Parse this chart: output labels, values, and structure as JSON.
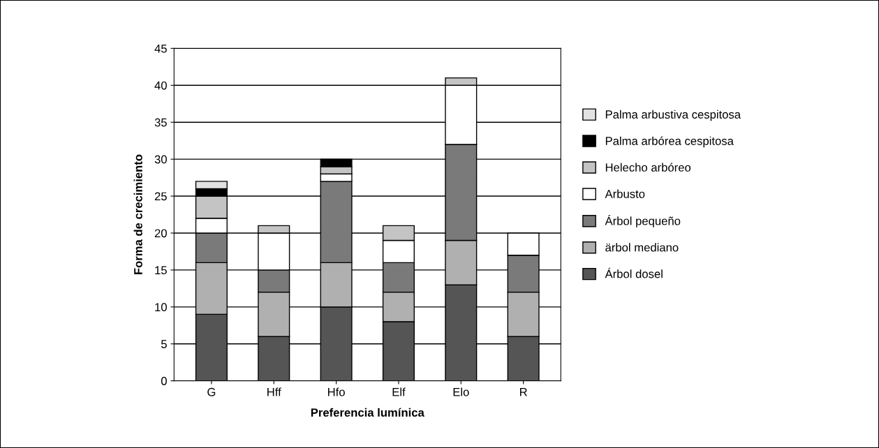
{
  "chart_data": {
    "type": "bar",
    "stacked": true,
    "xlabel": "Preferencia lumínica",
    "ylabel": "Forma de crecimiento",
    "categories": [
      "G",
      "Hff",
      "Hfo",
      "Elf",
      "Elo",
      "R"
    ],
    "series": [
      {
        "name": "Árbol dosel",
        "color": "#555555",
        "values": [
          9,
          6,
          10,
          8,
          13,
          6
        ]
      },
      {
        "name": "ärbol mediano",
        "color": "#b0b0b0",
        "values": [
          7,
          6,
          6,
          4,
          6,
          6
        ]
      },
      {
        "name": "Árbol pequeño",
        "color": "#7a7a7a",
        "values": [
          4,
          3,
          11,
          4,
          13,
          5
        ]
      },
      {
        "name": "Arbusto",
        "color": "#ffffff",
        "values": [
          2,
          5,
          1,
          3,
          8,
          3
        ]
      },
      {
        "name": "Helecho arbóreo",
        "color": "#c4c4c4",
        "values": [
          3,
          1,
          1,
          2,
          1,
          0
        ]
      },
      {
        "name": "Palma arbórea cespitosa",
        "color": "#000000",
        "values": [
          1,
          0,
          1,
          0,
          0,
          0
        ]
      },
      {
        "name": "Palma arbustiva cespitosa",
        "color": "#e2e2e2",
        "values": [
          1,
          0,
          0,
          0,
          0,
          0
        ]
      }
    ],
    "ylim": [
      0,
      45
    ],
    "yticks": [
      0,
      5,
      10,
      15,
      20,
      25,
      30,
      35,
      40,
      45
    ],
    "grid": "y",
    "legend": "right"
  }
}
